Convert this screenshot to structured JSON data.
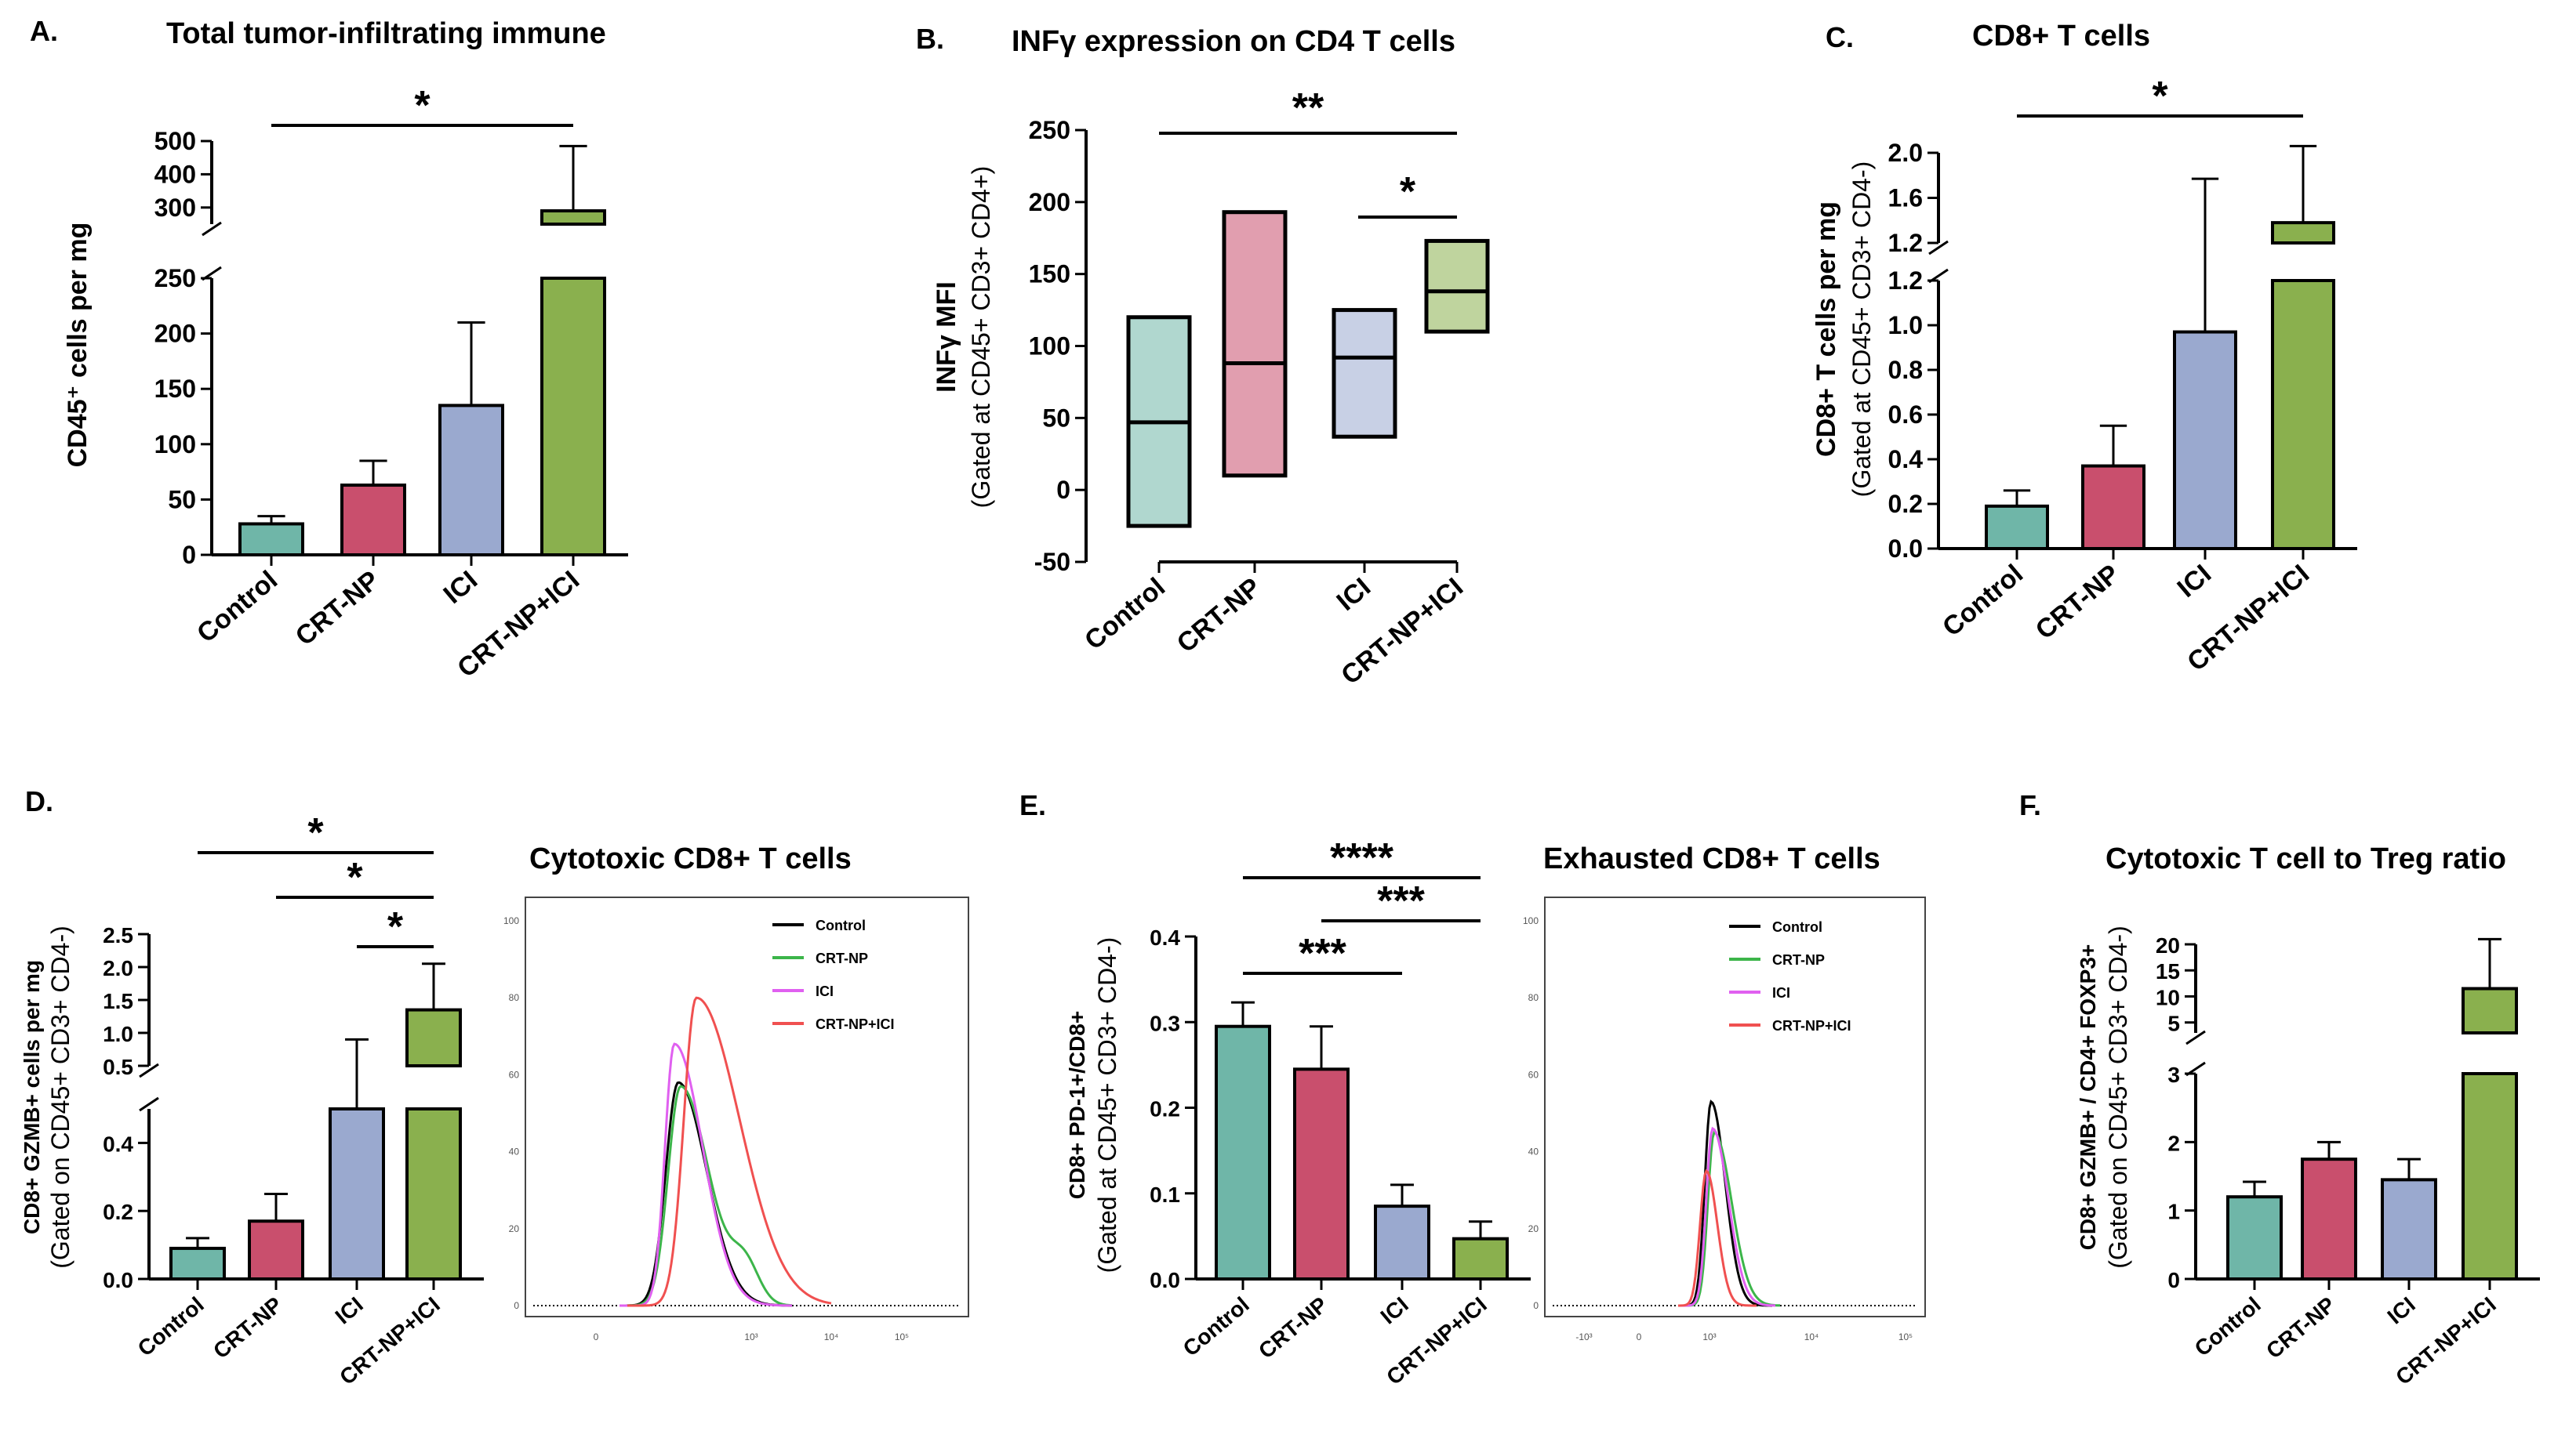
{
  "colors": {
    "control": "#6fb6a8",
    "crt_np": "#c94f6d",
    "ici": "#9aa9cf",
    "combo": "#8ab04e",
    "h_control": "#000000",
    "h_crt_np": "#3cb54a",
    "h_ici": "#e060f0",
    "h_combo": "#f05050"
  },
  "categories": [
    "Control",
    "CRT-NP",
    "ICI",
    "CRT-NP+ICI"
  ],
  "chart_data": [
    {
      "panel": "A.",
      "type": "bar",
      "title": "Total tumor-infiltrating immune",
      "ylabel": "CD45⁺ cells per mg",
      "ylabel2": "",
      "categories": [
        "Control",
        "CRT-NP",
        "ICI",
        "CRT-NP+ICI"
      ],
      "values": [
        28,
        63,
        135,
        290
      ],
      "errors": [
        7,
        22,
        75,
        195
      ],
      "ylim_lower": [
        0,
        250
      ],
      "ylim_upper": [
        250,
        500
      ],
      "ticks_lower": [
        "0",
        "50",
        "100",
        "150",
        "200",
        "250"
      ],
      "ticks_upper": [
        "300",
        "400",
        "500"
      ],
      "significance": [
        {
          "from": 0,
          "to": 3,
          "label": "*"
        }
      ]
    },
    {
      "panel": "B.",
      "type": "box",
      "title": "INFγ expression on CD4 T cells",
      "ylabel": "INFγ MFI",
      "ylabel2": "(Gated at CD45+ CD3+ CD4+)",
      "categories": [
        "Control",
        "CRT-NP",
        "ICI",
        "CRT-NP+ICI"
      ],
      "boxes": [
        {
          "min": -25,
          "median": 47,
          "max": 120
        },
        {
          "min": 10,
          "median": 88,
          "max": 193
        },
        {
          "min": 37,
          "median": 92,
          "max": 125
        },
        {
          "min": 110,
          "median": 138,
          "max": 173
        }
      ],
      "ylim": [
        -50,
        250
      ],
      "ticks": [
        "-50",
        "0",
        "50",
        "100",
        "150",
        "200",
        "250"
      ],
      "significance": [
        {
          "from": 0,
          "to": 3,
          "label": "**"
        },
        {
          "from": 2,
          "to": 3,
          "label": "*"
        }
      ]
    },
    {
      "panel": "C.",
      "type": "bar",
      "title": "CD8+ T cells",
      "ylabel": "CD8+ T cells per mg",
      "ylabel2": "(Gated at CD45+ CD3+ CD4-)",
      "categories": [
        "Control",
        "CRT-NP",
        "ICI",
        "CRT-NP+ICI"
      ],
      "values": [
        0.19,
        0.37,
        0.97,
        1.38
      ],
      "errors": [
        0.07,
        0.18,
        0.8,
        0.68
      ],
      "ylim_lower": [
        0,
        1.2
      ],
      "ylim_upper": [
        1.2,
        2.0
      ],
      "ticks_lower": [
        "0.0",
        "0.2",
        "0.4",
        "0.6",
        "0.8",
        "1.0",
        "1.2"
      ],
      "ticks_upper": [
        "1.2",
        "1.6",
        "2.0"
      ],
      "significance": [
        {
          "from": 0,
          "to": 3,
          "label": "*"
        }
      ]
    },
    {
      "panel": "D.",
      "type": "bar",
      "title": "",
      "ylabel": "CD8+ GZMB+ cells per mg",
      "ylabel2": "(Gated on CD45+ CD3+ CD4-)",
      "categories": [
        "Control",
        "CRT-NP",
        "ICI",
        "CRT-NP+ICI"
      ],
      "values": [
        0.09,
        0.17,
        0.5,
        1.35
      ],
      "errors": [
        0.03,
        0.08,
        0.4,
        0.7
      ],
      "ylim_lower": [
        0,
        0.5
      ],
      "ylim_upper": [
        0.5,
        2.5
      ],
      "ticks_lower": [
        "0.0",
        "0.2",
        "0.4"
      ],
      "ticks_upper": [
        "0.5",
        "1.0",
        "1.5",
        "2.0",
        "2.5"
      ],
      "significance": [
        {
          "from": 0,
          "to": 3,
          "label": "*"
        },
        {
          "from": 1,
          "to": 3,
          "label": "*"
        },
        {
          "from": 2,
          "to": 3,
          "label": "*"
        }
      ]
    },
    {
      "panel": "D-hist",
      "type": "line",
      "title": "Cytotoxic CD8+ T cells",
      "xticks": [
        "0",
        "10³",
        "10⁴",
        "10⁵"
      ],
      "yticks": [
        "0",
        "20",
        "40",
        "60",
        "80",
        "100"
      ],
      "legend": [
        "Control",
        "CRT-NP",
        "ICI",
        "CRT-NP+ICI"
      ],
      "peaks": [
        58,
        57,
        68,
        80
      ]
    },
    {
      "panel": "E.",
      "type": "bar",
      "title": "",
      "ylabel": "CD8+ PD-1+/CD8+",
      "ylabel2": "(Gated at CD45+ CD3+ CD4-)",
      "categories": [
        "Control",
        "CRT-NP",
        "ICI",
        "CRT-NP+ICI"
      ],
      "values": [
        0.295,
        0.245,
        0.085,
        0.047
      ],
      "errors": [
        0.028,
        0.05,
        0.025,
        0.02
      ],
      "ylim": [
        0,
        0.4
      ],
      "ticks": [
        "0.0",
        "0.1",
        "0.2",
        "0.3",
        "0.4"
      ],
      "significance": [
        {
          "from": 0,
          "to": 3,
          "label": "****"
        },
        {
          "from": 1,
          "to": 3,
          "label": "***"
        },
        {
          "from": 0,
          "to": 2,
          "label": "***"
        }
      ]
    },
    {
      "panel": "E-hist",
      "type": "line",
      "title": "Exhausted CD8+ T cells",
      "xticks": [
        "-10³",
        "0",
        "10³",
        "10⁴",
        "10⁵"
      ],
      "yticks": [
        "0",
        "20",
        "40",
        "60",
        "80",
        "100"
      ],
      "legend": [
        "Control",
        "CRT-NP",
        "ICI",
        "CRT-NP+ICI"
      ],
      "peaks": [
        53,
        45,
        46,
        35
      ]
    },
    {
      "panel": "F.",
      "type": "bar",
      "title": "Cytotoxic T cell to Treg ratio",
      "ylabel": "CD8+ GZMB+ / CD4+ FOXP3+",
      "ylabel2": "(Gated on CD45+ CD3+ CD4-)",
      "categories": [
        "Control",
        "CRT-NP",
        "ICI",
        "CRT-NP+ICI"
      ],
      "values": [
        1.2,
        1.75,
        1.45,
        11.5
      ],
      "errors": [
        0.22,
        0.25,
        0.3,
        9.5
      ],
      "ylim_lower": [
        0,
        3
      ],
      "ylim_upper": [
        3,
        20
      ],
      "ticks_lower": [
        "0",
        "1",
        "2",
        "3"
      ],
      "ticks_upper": [
        "5",
        "10",
        "15",
        "20"
      ],
      "significance": []
    }
  ]
}
